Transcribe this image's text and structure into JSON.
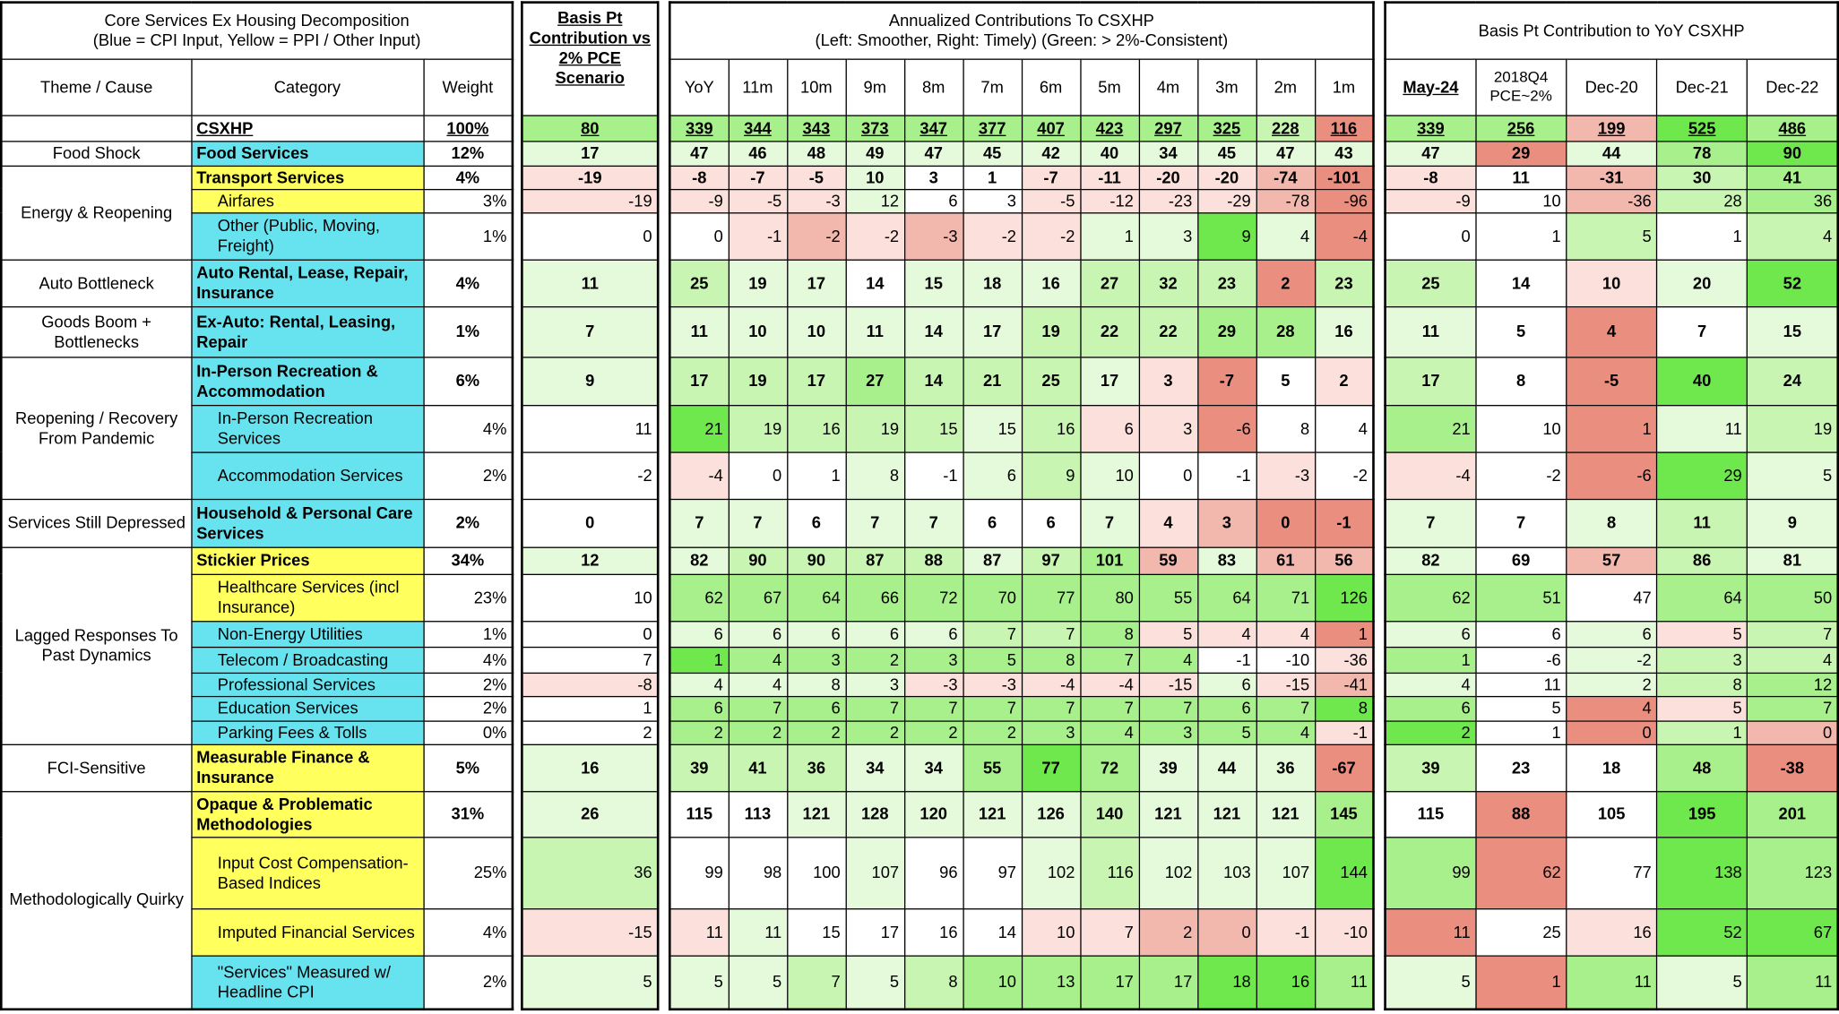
{
  "palette": {
    "0": "#ffffff",
    "1": "#e4fadb",
    "2": "#c8f5b2",
    "3": "#a8f08c",
    "4": "#6ee84c",
    "5": "#fbe0dc",
    "6": "#f2b8ae",
    "7": "#ea8e80"
  },
  "source_colors": {
    "cpi": "#66e3ef",
    "ppi": "#ffff5e"
  },
  "panels": {
    "left": {
      "title": "Core Services Ex Housing Decomposition",
      "subtitle": "(Blue = CPI Input, Yellow = PPI / Other Input)",
      "headers": [
        "Theme / Cause",
        "Category",
        "Weight"
      ]
    },
    "basis": {
      "header": "Basis Pt Contribution vs 2% PCE Scenario"
    },
    "annualized": {
      "title": "Annualized Contributions To CSXHP",
      "subtitle": "(Left: Smoother, Right: Timely) (Green: > 2%-Consistent)",
      "headers": [
        "YoY",
        "11m",
        "10m",
        "9m",
        "8m",
        "7m",
        "6m",
        "5m",
        "4m",
        "3m",
        "2m",
        "1m"
      ]
    },
    "yoy": {
      "title": "Basis Pt Contribution to YoY CSXHP",
      "headers": [
        "May-24",
        "2018Q4 PCE~2%",
        "Dec-20",
        "Dec-21",
        "Dec-22"
      ]
    }
  },
  "total": {
    "category": "CSXHP",
    "weight": "100%",
    "basis": 80,
    "annualized": [
      339,
      344,
      343,
      373,
      347,
      377,
      407,
      423,
      297,
      325,
      228,
      116
    ],
    "yoy": [
      339,
      256,
      199,
      525,
      486
    ],
    "shade": "3|333333333327|33643"
  },
  "groups": [
    {
      "theme": "Food Shock",
      "rows": [
        {
          "category": "Food Services",
          "source": "cpi",
          "bold": true,
          "weight": "12%",
          "basis": 17,
          "annualized": [
            47,
            46,
            48,
            49,
            47,
            45,
            42,
            40,
            34,
            45,
            47,
            43
          ],
          "yoy": [
            47,
            29,
            44,
            78,
            90
          ],
          "shade": "1|111111111111|17134"
        }
      ]
    },
    {
      "theme": "Energy & Reopening",
      "rows": [
        {
          "category": "Transport Services",
          "source": "ppi",
          "bold": true,
          "weight": "4%",
          "basis": -19,
          "annualized": [
            -8,
            -7,
            -5,
            10,
            3,
            1,
            -7,
            -11,
            -20,
            -20,
            -74,
            -101
          ],
          "yoy": [
            -8,
            11,
            -31,
            30,
            41
          ],
          "shade": "5|555100555567|50623"
        },
        {
          "category": "Airfares",
          "source": "ppi",
          "bold": false,
          "weight": "3%",
          "basis": -19,
          "annualized": [
            -9,
            -5,
            -3,
            12,
            6,
            3,
            -5,
            -12,
            -23,
            -29,
            -78,
            -96
          ],
          "yoy": [
            -9,
            10,
            -36,
            28,
            36
          ],
          "shade": "5|555100555567|50623"
        },
        {
          "category": "Other (Public, Moving, Freight)",
          "source": "cpi",
          "bold": false,
          "weight": "1%",
          "basis": 0,
          "annualized": [
            0,
            -1,
            -2,
            -2,
            -3,
            -2,
            -2,
            1,
            3,
            9,
            4,
            -4
          ],
          "yoy": [
            0,
            1,
            5,
            1,
            4
          ],
          "shade": "0|056565511417|00202"
        }
      ]
    },
    {
      "theme": "Auto Bottleneck",
      "rows": [
        {
          "category": "Auto Rental, Lease, Repair, Insurance",
          "source": "cpi",
          "bold": true,
          "weight": "4%",
          "basis": 11,
          "annualized": [
            25,
            19,
            17,
            14,
            15,
            18,
            16,
            27,
            32,
            23,
            2,
            23
          ],
          "yoy": [
            25,
            14,
            10,
            20,
            52
          ],
          "shade": "1|211011122272|20514"
        }
      ]
    },
    {
      "theme": "Goods Boom + Bottlenecks",
      "rows": [
        {
          "category": "Ex-Auto: Rental, Leasing, Repair",
          "source": "cpi",
          "bold": true,
          "weight": "1%",
          "basis": 7,
          "annualized": [
            11,
            10,
            10,
            11,
            14,
            17,
            19,
            22,
            22,
            29,
            28,
            16
          ],
          "yoy": [
            11,
            5,
            4,
            7,
            15
          ],
          "shade": "1|111111222331|10701"
        }
      ]
    },
    {
      "theme": "Reopening / Recovery From Pandemic",
      "rows": [
        {
          "category": "In-Person Recreation & Accommodation",
          "source": "cpi",
          "bold": true,
          "weight": "6%",
          "basis": 9,
          "annualized": [
            17,
            19,
            17,
            27,
            14,
            21,
            25,
            17,
            3,
            -7,
            5,
            2
          ],
          "yoy": [
            17,
            8,
            -5,
            40,
            24
          ],
          "shade": "1|222322215705|20742"
        },
        {
          "category": "In-Person Recreation Services",
          "source": "cpi",
          "bold": false,
          "weight": "4%",
          "basis": 11,
          "annualized": [
            21,
            19,
            16,
            19,
            15,
            15,
            16,
            6,
            3,
            -6,
            8,
            4
          ],
          "yoy": [
            21,
            10,
            1,
            11,
            19
          ],
          "shade": "0|422221255700|30712"
        },
        {
          "category": "Accommodation Services",
          "source": "cpi",
          "bold": false,
          "weight": "2%",
          "basis": -2,
          "annualized": [
            -4,
            0,
            1,
            8,
            -1,
            6,
            9,
            10,
            0,
            -1,
            -3,
            -2
          ],
          "yoy": [
            -4,
            -2,
            -6,
            29,
            5
          ],
          "shade": "0|500101210050|50741"
        }
      ]
    },
    {
      "theme": "Services Still Depressed",
      "rows": [
        {
          "category": "Household & Personal Care Services",
          "source": "cpi",
          "bold": true,
          "weight": "2%",
          "basis": 0,
          "annualized": [
            7,
            7,
            6,
            7,
            7,
            6,
            6,
            7,
            4,
            3,
            0,
            -1
          ],
          "yoy": [
            7,
            7,
            8,
            11,
            9
          ],
          "shade": "0|110110015677|10121"
        }
      ]
    },
    {
      "theme": "Lagged Responses To Past Dynamics",
      "rows": [
        {
          "category": "Stickier Prices",
          "source": "ppi",
          "bold": true,
          "weight": "34%",
          "basis": 12,
          "annualized": [
            82,
            90,
            90,
            87,
            88,
            87,
            97,
            101,
            59,
            83,
            61,
            56
          ],
          "yoy": [
            82,
            69,
            57,
            86,
            81
          ],
          "shade": "1|122221236166|10621"
        },
        {
          "category": "Healthcare Services (incl Insurance)",
          "source": "ppi",
          "bold": false,
          "weight": "23%",
          "basis": 10,
          "annualized": [
            62,
            67,
            64,
            66,
            72,
            70,
            77,
            80,
            55,
            64,
            71,
            126
          ],
          "yoy": [
            62,
            51,
            47,
            64,
            50
          ],
          "shade": "0|333333333334|33033"
        },
        {
          "category": "Non-Energy Utilities",
          "source": "cpi",
          "bold": false,
          "weight": "1%",
          "basis": 0,
          "annualized": [
            6,
            6,
            6,
            6,
            6,
            7,
            7,
            8,
            5,
            4,
            4,
            1
          ],
          "yoy": [
            6,
            6,
            6,
            5,
            7
          ],
          "shade": "0|111112235557|10152"
        },
        {
          "category": "Telecom / Broadcasting",
          "source": "cpi",
          "bold": false,
          "weight": "4%",
          "basis": 7,
          "annualized": [
            1,
            4,
            3,
            2,
            3,
            5,
            8,
            7,
            4,
            -1,
            -10,
            -36
          ],
          "yoy": [
            1,
            -6,
            -2,
            3,
            4
          ],
          "shade": "0|433333333005|30122"
        },
        {
          "category": "Professional Services",
          "source": "cpi",
          "bold": false,
          "weight": "2%",
          "basis": -8,
          "annualized": [
            4,
            4,
            8,
            3,
            -3,
            -3,
            -4,
            -4,
            -15,
            6,
            -15,
            -41
          ],
          "yoy": [
            4,
            11,
            2,
            8,
            12
          ],
          "shade": "5|111155555156|10123"
        },
        {
          "category": "Education Services",
          "source": "cpi",
          "bold": false,
          "weight": "2%",
          "basis": 1,
          "annualized": [
            6,
            7,
            6,
            7,
            7,
            7,
            7,
            7,
            7,
            6,
            7,
            8
          ],
          "yoy": [
            6,
            5,
            4,
            5,
            7
          ],
          "shade": "0|333333333334|30753"
        },
        {
          "category": "Parking Fees & Tolls",
          "source": "cpi",
          "bold": false,
          "weight": "0%",
          "basis": 2,
          "annualized": [
            2,
            2,
            2,
            2,
            2,
            2,
            3,
            4,
            3,
            5,
            4,
            -1
          ],
          "yoy": [
            2,
            1,
            0,
            1,
            0
          ],
          "shade": "0|333333333335|40726"
        }
      ]
    },
    {
      "theme": "FCI-Sensitive",
      "rows": [
        {
          "category": "Measurable Finance & Insurance",
          "source": "ppi",
          "bold": true,
          "weight": "5%",
          "basis": 16,
          "annualized": [
            39,
            41,
            36,
            34,
            34,
            55,
            77,
            72,
            39,
            44,
            36,
            -67
          ],
          "yoy": [
            39,
            23,
            18,
            48,
            -38
          ],
          "shade": "1|222113431117|20037"
        }
      ]
    },
    {
      "theme": "Methodologically Quirky",
      "rows": [
        {
          "category": "Opaque & Problematic Methodologies",
          "source": "ppi",
          "bold": true,
          "weight": "31%",
          "basis": 26,
          "annualized": [
            115,
            113,
            121,
            128,
            120,
            121,
            126,
            140,
            121,
            121,
            121,
            145
          ],
          "yoy": [
            115,
            88,
            105,
            195,
            201
          ],
          "shade": "1|001111121113|07043"
        },
        {
          "category": "Input Cost Compensation-Based Indices",
          "source": "ppi",
          "bold": false,
          "weight": "25%",
          "basis": 36,
          "annualized": [
            99,
            98,
            100,
            107,
            96,
            97,
            102,
            116,
            102,
            103,
            107,
            144
          ],
          "yoy": [
            99,
            62,
            77,
            138,
            123
          ],
          "shade": "2|000100121114|37043"
        },
        {
          "category": "Imputed Financial Services",
          "source": "ppi",
          "bold": false,
          "weight": "4%",
          "basis": -15,
          "annualized": [
            11,
            11,
            15,
            17,
            16,
            14,
            10,
            7,
            2,
            0,
            -1,
            -10
          ],
          "yoy": [
            11,
            25,
            16,
            52,
            67
          ],
          "shade": "5|510000556655|70544"
        },
        {
          "category": "\"Services\" Measured w/ Headline CPI",
          "source": "cpi",
          "bold": false,
          "weight": "2%",
          "basis": 5,
          "annualized": [
            5,
            5,
            7,
            5,
            8,
            10,
            13,
            17,
            17,
            18,
            16,
            11
          ],
          "yoy": [
            5,
            1,
            11,
            5,
            11
          ],
          "shade": "1|112123333443|17313"
        }
      ]
    }
  ]
}
